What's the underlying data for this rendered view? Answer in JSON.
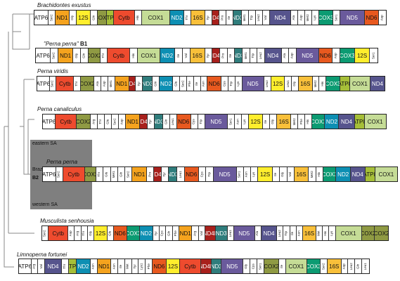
{
  "colors": {
    "COX1": "#c5dc96",
    "COX2": "#8f9a43",
    "COX3": "#0c9b72",
    "ATP6": "#ffffff",
    "ATP8": "#a6bf38",
    "Cytb": "#ee4b2e",
    "ND1": "#f5a31e",
    "ND2": "#0d8fb3",
    "ND3": "#2f7d7c",
    "ND4": "#56548d",
    "ND4L": "#a8201c",
    "ND5": "#6a5a9c",
    "ND6": "#e8591f",
    "12S": "#ffee2d",
    "16S": "#f9c03a",
    "trna": "#ffffff",
    "tree": "#888888",
    "region": "#7f7f7f"
  },
  "species": [
    {
      "title": "Brachidontes exustus",
      "suffix": "",
      "genes": [
        {
          "n": "ATP6",
          "w": 2
        },
        {
          "n": "Ser2",
          "w": 1
        },
        {
          "n": "ND1",
          "w": 2
        },
        {
          "n": "Gly",
          "w": 1
        },
        {
          "n": "12S",
          "w": 2
        },
        {
          "n": "Gln",
          "w": 1
        },
        {
          "n": "COX2",
          "w": 1.3
        },
        {
          "n": "ATP8",
          "w": 1
        },
        {
          "n": "Cytb",
          "w": 3
        },
        {
          "n": "His",
          "w": 1
        },
        {
          "n": "COX1",
          "w": 4
        },
        {
          "n": "ND2",
          "w": 2
        },
        {
          "n": "Thr",
          "w": 1
        },
        {
          "n": "16S",
          "w": 2
        },
        {
          "n": "Tyr",
          "w": 1
        },
        {
          "n": "ND4L",
          "w": 1
        },
        {
          "n": "Pro",
          "w": 1
        },
        {
          "n": "Ile",
          "w": 1
        },
        {
          "n": "ND3",
          "w": 1.2
        },
        {
          "n": "Met1",
          "w": 1
        },
        {
          "n": "Trp",
          "w": 1
        },
        {
          "n": "Leu2",
          "w": 1
        },
        {
          "n": "Val",
          "w": 1
        },
        {
          "n": "ND4",
          "w": 3
        },
        {
          "n": "Ala",
          "w": 1
        },
        {
          "n": "Asp",
          "w": 1
        },
        {
          "n": "Met2",
          "w": 1
        },
        {
          "n": "Lys",
          "w": 1
        },
        {
          "n": "COX3",
          "w": 2
        },
        {
          "n": "Ser1",
          "w": 1
        },
        {
          "n": "ND5",
          "w": 3.5
        },
        {
          "n": "ND6",
          "w": 2
        },
        {
          "n": "Asp",
          "w": 1
        }
      ]
    },
    {
      "title": "\"Perna perna\"",
      "suffix": "B1",
      "genes": [
        {
          "n": "ATP6",
          "w": 2
        },
        {
          "n": "Ser2",
          "w": 1
        },
        {
          "n": "ND1",
          "w": 2
        },
        {
          "n": "Gly",
          "w": 1
        },
        {
          "n": "Gln",
          "w": 1
        },
        {
          "n": "COX2",
          "w": 1.6
        },
        {
          "n": "Thr",
          "w": 1
        },
        {
          "n": "Cytb",
          "w": 3
        },
        {
          "n": "His",
          "w": 1
        },
        {
          "n": "COX1",
          "w": 3
        },
        {
          "n": "ND2",
          "w": 2
        },
        {
          "n": "Ile",
          "w": 1
        },
        {
          "n": "Val",
          "w": 1
        },
        {
          "n": "16S",
          "w": 2
        },
        {
          "n": "Tyr",
          "w": 1
        },
        {
          "n": "ND4L",
          "w": 1
        },
        {
          "n": "Pro",
          "w": 1
        },
        {
          "n": "Ile",
          "w": 1
        },
        {
          "n": "ND3",
          "w": 1
        },
        {
          "n": "Met1",
          "w": 1
        },
        {
          "n": "Trp",
          "w": 1
        },
        {
          "n": "Leu2",
          "w": 1
        },
        {
          "n": "ND4",
          "w": 2.2
        },
        {
          "n": "Ala",
          "w": 1
        },
        {
          "n": "Asp",
          "w": 1
        },
        {
          "n": "ND5",
          "w": 3
        },
        {
          "n": "ND6",
          "w": 1.8
        },
        {
          "n": "Asp",
          "w": 1
        },
        {
          "n": "COX3",
          "w": 2
        },
        {
          "n": "12S",
          "w": 2
        },
        {
          "n": "Ser1",
          "w": 1
        }
      ]
    },
    {
      "title": "Perna viridis",
      "suffix": "",
      "genes": [
        {
          "n": "ATP6",
          "w": 1.8
        },
        {
          "n": "Ser2",
          "w": 1
        },
        {
          "n": "Cytb",
          "w": 2.5
        },
        {
          "n": "Thr",
          "w": 1
        },
        {
          "n": "COX2",
          "w": 2
        },
        {
          "n": "Ala",
          "w": 1
        },
        {
          "n": "Asp",
          "w": 1
        },
        {
          "n": "Met1",
          "w": 1
        },
        {
          "n": "ND1",
          "w": 2
        },
        {
          "n": "ND4L",
          "w": 1
        },
        {
          "n": "Tyr",
          "w": 1
        },
        {
          "n": "ND3",
          "w": 1.4
        },
        {
          "n": "Gln",
          "w": 1
        },
        {
          "n": "ND2",
          "w": 2
        },
        {
          "n": "Glu",
          "w": 1
        },
        {
          "n": "Ser2",
          "w": 1
        },
        {
          "n": "Phe",
          "w": 1
        },
        {
          "n": "Ile",
          "w": 1
        },
        {
          "n": "Asn",
          "w": 1
        },
        {
          "n": "ND6",
          "w": 2
        },
        {
          "n": "Cys",
          "w": 1
        },
        {
          "n": "Trp",
          "w": 1
        },
        {
          "n": "Lys",
          "w": 1
        },
        {
          "n": "ND5",
          "w": 3.2
        },
        {
          "n": "Leu2",
          "w": 1
        },
        {
          "n": "12S",
          "w": 2
        },
        {
          "n": "Leu1",
          "w": 1
        },
        {
          "n": "Gly",
          "w": 1
        },
        {
          "n": "16S",
          "w": 2
        },
        {
          "n": "Met2",
          "w": 1
        },
        {
          "n": "His",
          "w": 1
        },
        {
          "n": "COX3",
          "w": 2
        },
        {
          "n": "ATP8",
          "w": 1.4
        },
        {
          "n": "COX1",
          "w": 3
        },
        {
          "n": "ND4",
          "w": 2
        }
      ]
    },
    {
      "title": "Perna canaliculus",
      "suffix": "",
      "genes": [
        {
          "n": "ATP6",
          "w": 1.8
        },
        {
          "n": "Cytb",
          "w": 3
        },
        {
          "n": "COX2",
          "w": 2
        },
        {
          "n": "Arg",
          "w": 1
        },
        {
          "n": "Thr",
          "w": 1
        },
        {
          "n": "Glu",
          "w": 1
        },
        {
          "n": "Ser2",
          "w": 1
        },
        {
          "n": "Asp",
          "w": 1
        },
        {
          "n": "ND1",
          "w": 2
        },
        {
          "n": "ND4L",
          "w": 1
        },
        {
          "n": "Tyr",
          "w": 1
        },
        {
          "n": "ND3",
          "w": 1.2
        },
        {
          "n": "Gln",
          "w": 1
        },
        {
          "n": "Leu1",
          "w": 1
        },
        {
          "n": "ND6",
          "w": 2
        },
        {
          "n": "Cys",
          "w": 1
        },
        {
          "n": "Trp",
          "w": 1
        },
        {
          "n": "ND5",
          "w": 3.2
        },
        {
          "n": "Ser1",
          "w": 1
        },
        {
          "n": "Asn",
          "w": 1
        },
        {
          "n": "Lys",
          "w": 1
        },
        {
          "n": "12S",
          "w": 2
        },
        {
          "n": "Ile",
          "w": 1
        },
        {
          "n": "Gly",
          "w": 1
        },
        {
          "n": "16S",
          "w": 2
        },
        {
          "n": "Met2",
          "w": 1
        },
        {
          "n": "Phe",
          "w": 1
        },
        {
          "n": "His",
          "w": 1
        },
        {
          "n": "COX3",
          "w": 1.8
        },
        {
          "n": "ND2",
          "w": 2
        },
        {
          "n": "ND4",
          "w": 2.2
        },
        {
          "n": "ATP8",
          "w": 1.4
        },
        {
          "n": "COX1",
          "w": 3
        }
      ]
    },
    {
      "title": "Perna perna",
      "suffix": "",
      "genes": [
        {
          "n": "ATP6",
          "w": 1.8
        },
        {
          "n": "Ser2",
          "w": 1
        },
        {
          "n": "Cytb",
          "w": 3
        },
        {
          "n": "COX2",
          "w": 1.6
        },
        {
          "n": "Thr",
          "w": 1
        },
        {
          "n": "Glu",
          "w": 1
        },
        {
          "n": "Met1",
          "w": 1
        },
        {
          "n": "Gln",
          "w": 1
        },
        {
          "n": "Ser2",
          "w": 1
        },
        {
          "n": "ND1",
          "w": 2
        },
        {
          "n": "Pro",
          "w": 1
        },
        {
          "n": "ND4L",
          "w": 1
        },
        {
          "n": "Tyr",
          "w": 1
        },
        {
          "n": "ND3",
          "w": 1.2
        },
        {
          "n": "Leu1",
          "w": 1
        },
        {
          "n": "ND6",
          "w": 2
        },
        {
          "n": "Cys",
          "w": 1
        },
        {
          "n": "Trp",
          "w": 1
        },
        {
          "n": "ND5",
          "w": 3.2
        },
        {
          "n": "Ser1",
          "w": 1
        },
        {
          "n": "Asn",
          "w": 1
        },
        {
          "n": "Lys",
          "w": 1
        },
        {
          "n": "12S",
          "w": 2
        },
        {
          "n": "Ile",
          "w": 1
        },
        {
          "n": "Gly",
          "w": 1
        },
        {
          "n": "Val",
          "w": 1
        },
        {
          "n": "16S",
          "w": 2
        },
        {
          "n": "Met2",
          "w": 1
        },
        {
          "n": "His",
          "w": 1
        },
        {
          "n": "COX3",
          "w": 1.8
        },
        {
          "n": "ND2",
          "w": 2
        },
        {
          "n": "ND4",
          "w": 2
        },
        {
          "n": "ATP8",
          "w": 1.4
        },
        {
          "n": "COX1",
          "w": 3
        }
      ]
    },
    {
      "title": "Musculista senhousia",
      "suffix": "",
      "genes": [
        {
          "n": "Ser2",
          "w": 1
        },
        {
          "n": "Cytb",
          "w": 3
        },
        {
          "n": "Asp",
          "w": 1
        },
        {
          "n": "Arg",
          "w": 1
        },
        {
          "n": "Thr",
          "w": 1
        },
        {
          "n": "Gly",
          "w": 1
        },
        {
          "n": "12S",
          "w": 2
        },
        {
          "n": "Glu",
          "w": 1
        },
        {
          "n": "ND6",
          "w": 2
        },
        {
          "n": "COX3",
          "w": 2
        },
        {
          "n": "ND2",
          "w": 2
        },
        {
          "n": "Tyr",
          "w": 1
        },
        {
          "n": "Cys",
          "w": 1
        },
        {
          "n": "Gln",
          "w": 1
        },
        {
          "n": "Phe",
          "w": 1
        },
        {
          "n": "ND1",
          "w": 2
        },
        {
          "n": "Arg",
          "w": 1
        },
        {
          "n": "Val",
          "w": 1
        },
        {
          "n": "ND4L",
          "w": 1.6
        },
        {
          "n": "ND3",
          "w": 1.8
        },
        {
          "n": "Leu1",
          "w": 1
        },
        {
          "n": "ND5",
          "w": 3.2
        },
        {
          "n": "Ala",
          "w": 1
        },
        {
          "n": "ND4",
          "w": 2.4
        },
        {
          "n": "Leu2",
          "w": 1
        },
        {
          "n": "Trp",
          "w": 1
        },
        {
          "n": "Ile",
          "w": 1
        },
        {
          "n": "Asn",
          "w": 1
        },
        {
          "n": "16S",
          "w": 2
        },
        {
          "n": "Met",
          "w": 1
        },
        {
          "n": "His",
          "w": 1
        },
        {
          "n": "Lys",
          "w": 1
        },
        {
          "n": "COX1",
          "w": 4
        },
        {
          "n": "COX2",
          "w": 2
        },
        {
          "n": "COX2",
          "w": 2
        }
      ]
    },
    {
      "title": "Limnoperna fortunei",
      "suffix": "",
      "genes": [
        {
          "n": "ATP6",
          "w": 1.8
        },
        {
          "n": "Arg",
          "w": 1
        },
        {
          "n": "Val",
          "w": 1
        },
        {
          "n": "ND4",
          "w": 2.4
        },
        {
          "n": "Thr",
          "w": 1
        },
        {
          "n": "ATP8",
          "w": 1.2
        },
        {
          "n": "ND2",
          "w": 2
        },
        {
          "n": "Asn",
          "w": 1
        },
        {
          "n": "ND1",
          "w": 2
        },
        {
          "n": "Asn",
          "w": 1
        },
        {
          "n": "Ile",
          "w": 1
        },
        {
          "n": "Met",
          "w": 1
        },
        {
          "n": "Tyr",
          "w": 1
        },
        {
          "n": "Lys1",
          "w": 1
        },
        {
          "n": "Phe",
          "w": 1
        },
        {
          "n": "ND6",
          "w": 2
        },
        {
          "n": "12S",
          "w": 2
        },
        {
          "n": "Cytb",
          "w": 3
        },
        {
          "n": "ND4L",
          "w": 1.6
        },
        {
          "n": "ND3",
          "w": 1.4
        },
        {
          "n": "ND5",
          "w": 3.2
        },
        {
          "n": "Gly",
          "w": 1
        },
        {
          "n": "Cys",
          "w": 1
        },
        {
          "n": "Ser1",
          "w": 1
        },
        {
          "n": "COX2",
          "w": 2.2
        },
        {
          "n": "Ile",
          "w": 1
        },
        {
          "n": "COX1",
          "w": 3
        },
        {
          "n": "COX3",
          "w": 2
        },
        {
          "n": "Ser2",
          "w": 1
        },
        {
          "n": "16S",
          "w": 2
        },
        {
          "n": "Asp",
          "w": 1
        },
        {
          "n": "Leu2",
          "w": 1
        },
        {
          "n": "Gln",
          "w": 1
        },
        {
          "n": "Leu1",
          "w": 1
        }
      ]
    }
  ],
  "region_labels": {
    "eastern": "eastern SA",
    "western": "western SA",
    "brazil": "Brazil",
    "b2": "B2"
  }
}
